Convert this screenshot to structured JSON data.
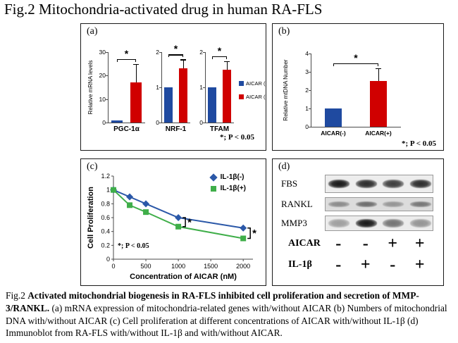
{
  "title": "Fig.2 Mitochondria-activated drug in human RA-FLS",
  "colors": {
    "aicar_neg": "#1f4aa0",
    "aicar_pos": "#d00000",
    "il1b_neg": "#2b58a8",
    "il1b_pos": "#3fae49"
  },
  "panel_a": {
    "label": "(a)",
    "pnote": "*; P < 0.05",
    "legend": [
      {
        "label": "AICAR (-)",
        "color": "#1f4aa0"
      },
      {
        "label": "AICAR (+)",
        "color": "#d00000"
      }
    ]
  },
  "panel_b": {
    "label": "(b)",
    "pnote": "*; P < 0.05"
  },
  "panel_c": {
    "label": "(c)",
    "pnote": "*; P < 0.05",
    "legend": [
      {
        "label": "IL-1β(-)",
        "color": "#2b58a8",
        "marker": "diamond"
      },
      {
        "label": "IL-1β(+)",
        "color": "#3fae49",
        "marker": "square"
      }
    ]
  },
  "panel_d": {
    "label": "(d)",
    "blots": [
      {
        "label": "FBS",
        "bg": "#ededed",
        "strip_h": 26,
        "band_h": 12,
        "bands": [
          0.97,
          0.88,
          0.8,
          0.88
        ]
      },
      {
        "label": "RANKL",
        "bg": "#dcdcdc",
        "strip_h": 20,
        "band_h": 8,
        "bands": [
          0.4,
          0.55,
          0.35,
          0.5
        ]
      },
      {
        "label": "MMP3",
        "bg": "#ececec",
        "strip_h": 22,
        "band_h": 12,
        "bands": [
          0.35,
          0.97,
          0.55,
          0.4
        ]
      }
    ],
    "conditions": [
      {
        "label": "AICAR",
        "signs": [
          "-",
          "-",
          "+",
          "+"
        ]
      },
      {
        "label": "IL-1β",
        "signs": [
          "-",
          "+",
          "-",
          "+"
        ]
      }
    ]
  },
  "caption": {
    "prefix": "Fig.2 ",
    "bold": "Activated mitochondrial biogenesis in RA-FLS inhibited cell proliferation and secretion of MMP-3/RANKL.",
    "rest": " (a) mRNA expression of mitochondria-related genes  with/without AICAR (b) Numbers of mitochondrial DNA with/without AICAR (c) Cell proliferation at different concentrations of AICAR with/without IL-1β (d) Immunoblot from RA-FLS with/without IL-1β and with/without AICAR."
  },
  "chart_data": [
    {
      "type": "bar",
      "panel": "a",
      "xlabel": "PGC-1α",
      "ylabel": "Relative mRNA levels",
      "categories": [
        "AICAR (-)",
        "AICAR (+)"
      ],
      "values": [
        1,
        17
      ],
      "errors": [
        null,
        8
      ],
      "colors": [
        "#1f4aa0",
        "#d00000"
      ],
      "ylim": [
        0,
        30
      ],
      "yticks": [
        0,
        10,
        20,
        30
      ],
      "sig": "*"
    },
    {
      "type": "bar",
      "panel": "a",
      "xlabel": "NRF-1",
      "categories": [
        "AICAR (-)",
        "AICAR (+)"
      ],
      "values": [
        1.0,
        1.55
      ],
      "errors": [
        null,
        0.25
      ],
      "colors": [
        "#1f4aa0",
        "#d00000"
      ],
      "ylim": [
        0,
        2
      ],
      "yticks": [
        0,
        1,
        2
      ],
      "sig": "*"
    },
    {
      "type": "bar",
      "panel": "a",
      "xlabel": "TFAM",
      "categories": [
        "AICAR (-)",
        "AICAR (+)"
      ],
      "values": [
        1.0,
        1.5
      ],
      "errors": [
        null,
        0.25
      ],
      "colors": [
        "#1f4aa0",
        "#d00000"
      ],
      "ylim": [
        0,
        2
      ],
      "yticks": [
        0,
        1,
        2
      ],
      "sig": "*"
    },
    {
      "type": "bar",
      "panel": "b",
      "ylabel": "Relative mtDNA Number",
      "show_categories": true,
      "categories": [
        "AICAR(-)",
        "AICAR(+)"
      ],
      "values": [
        1.0,
        2.5
      ],
      "errors": [
        null,
        0.7
      ],
      "colors": [
        "#1f4aa0",
        "#d00000"
      ],
      "ylim": [
        0,
        4
      ],
      "yticks": [
        0,
        1,
        2,
        3,
        4
      ],
      "sig": "*"
    },
    {
      "type": "line",
      "panel": "c",
      "xlabel": "Concentration of AICAR (nM)",
      "ylabel": "Cell Proliferation",
      "x": [
        0,
        250,
        500,
        1000,
        2000
      ],
      "series": [
        {
          "name": "IL-1β(-)",
          "marker": "diamond",
          "color": "#2b58a8",
          "values": [
            1.0,
            0.9,
            0.8,
            0.6,
            0.45
          ]
        },
        {
          "name": "IL-1β(+)",
          "marker": "square",
          "color": "#3fae49",
          "values": [
            1.0,
            0.78,
            0.68,
            0.47,
            0.3
          ]
        }
      ],
      "xlim": [
        0,
        2150
      ],
      "xticks": [
        0,
        500,
        1000,
        1500,
        2000
      ],
      "ylim": [
        0,
        1.2
      ],
      "yticks": [
        0,
        0.2,
        0.4,
        0.6,
        0.8,
        1.0,
        1.2
      ],
      "legend_position": "top-right",
      "grid": false,
      "sig_brackets": [
        {
          "x_index": 3
        },
        {
          "x_index": 4
        }
      ]
    }
  ]
}
